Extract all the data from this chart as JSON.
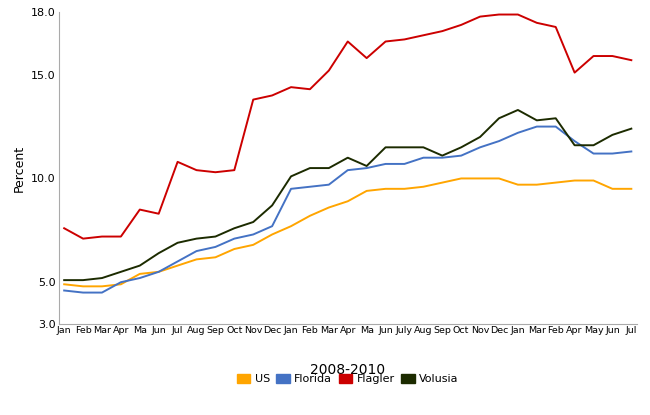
{
  "title_x": "2008-2010",
  "ylabel": "Percent",
  "ylim": [
    3.0,
    18.0
  ],
  "yticks": [
    3.0,
    5.0,
    10.0,
    15.0,
    18.0
  ],
  "ytick_labels": [
    "3.0",
    "5.0",
    "10.0",
    "15.0",
    "18.0"
  ],
  "xlabel_labels": [
    "Jan",
    "Feb",
    "Mar",
    "Apr",
    "Ma",
    "Jun",
    "Jul",
    "Aug",
    "Sep",
    "Oct",
    "Nov",
    "Dec",
    "Jan",
    "Feb",
    "Mar",
    "Apr",
    "Ma",
    "Jun",
    "July",
    "Aug",
    "Sep",
    "Oct",
    "Nov",
    "Dec",
    "Jan",
    "Mar",
    "Feb",
    "Apr",
    "May",
    "Jun",
    "Jul"
  ],
  "colors": {
    "US": "#FFA500",
    "Florida": "#4472C4",
    "Flagler": "#CC0000",
    "Volusia": "#1C2B00"
  },
  "US": [
    4.9,
    4.8,
    4.8,
    4.9,
    5.4,
    5.5,
    5.8,
    6.1,
    6.2,
    6.6,
    6.8,
    7.3,
    7.7,
    8.2,
    8.6,
    8.9,
    9.4,
    9.5,
    9.5,
    9.6,
    9.8,
    10.0,
    10.0,
    10.0,
    9.7,
    9.7,
    9.8,
    9.9,
    9.9,
    9.5,
    9.5
  ],
  "Florida": [
    4.6,
    4.5,
    4.5,
    5.0,
    5.2,
    5.5,
    6.0,
    6.5,
    6.7,
    7.1,
    7.3,
    7.7,
    9.5,
    9.6,
    9.7,
    10.4,
    10.5,
    10.7,
    10.7,
    11.0,
    11.0,
    11.1,
    11.5,
    11.8,
    12.2,
    12.5,
    12.5,
    11.8,
    11.2,
    11.2,
    11.3
  ],
  "Flagler": [
    7.6,
    7.1,
    7.2,
    7.2,
    8.5,
    8.3,
    10.8,
    10.4,
    10.3,
    10.4,
    13.8,
    14.0,
    14.4,
    14.3,
    15.2,
    16.6,
    15.8,
    16.6,
    16.7,
    16.9,
    17.1,
    17.4,
    17.8,
    17.9,
    17.9,
    17.5,
    17.3,
    15.1,
    15.9,
    15.9,
    15.7
  ],
  "Volusia": [
    5.1,
    5.1,
    5.2,
    5.5,
    5.8,
    6.4,
    6.9,
    7.1,
    7.2,
    7.6,
    7.9,
    8.7,
    10.1,
    10.5,
    10.5,
    11.0,
    10.6,
    11.5,
    11.5,
    11.5,
    11.1,
    11.5,
    12.0,
    12.9,
    13.3,
    12.8,
    12.9,
    11.6,
    11.6,
    12.1,
    12.4
  ],
  "linewidth": 1.4,
  "figwidth": 6.5,
  "figheight": 4.15,
  "dpi": 100
}
